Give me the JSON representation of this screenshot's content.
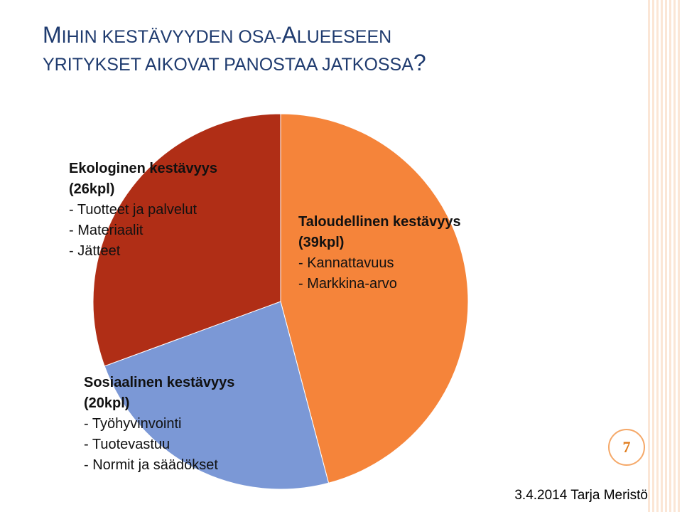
{
  "title": {
    "line1_cap": "M",
    "line1_rest": "IHIN KESTÄVYYDEN OSA",
    "line1_dash": "-",
    "line1_cap2": "A",
    "line1_rest2": "LUEESEEN",
    "line2": "YRITYKSET AIKOVAT PANOSTAA JATKOSSA",
    "line2_q": "?"
  },
  "chart_data": {
    "type": "pie",
    "slices": [
      {
        "name": "Taloudellinen kestävyys",
        "value": 39,
        "count_label": "(39kpl)",
        "items": [
          "- Kannattavuus",
          "- Markkina-arvo"
        ],
        "color": "#f5843a"
      },
      {
        "name": "Sosiaalinen kestävyys",
        "value": 20,
        "count_label": "(20kpl)",
        "items": [
          "- Työhyvinvointi",
          "- Tuotevastuu",
          "- Normit ja säädökset"
        ],
        "color": "#7b98d6"
      },
      {
        "name": "Ekologinen kestävyys",
        "value": 26,
        "count_label": "(26kpl)",
        "items": [
          "- Tuotteet ja palvelut",
          "- Materiaalit",
          "- Jätteet"
        ],
        "color": "#b02e16"
      }
    ]
  },
  "page_number": "7",
  "footer": "3.4.2014 Tarja Meristö"
}
